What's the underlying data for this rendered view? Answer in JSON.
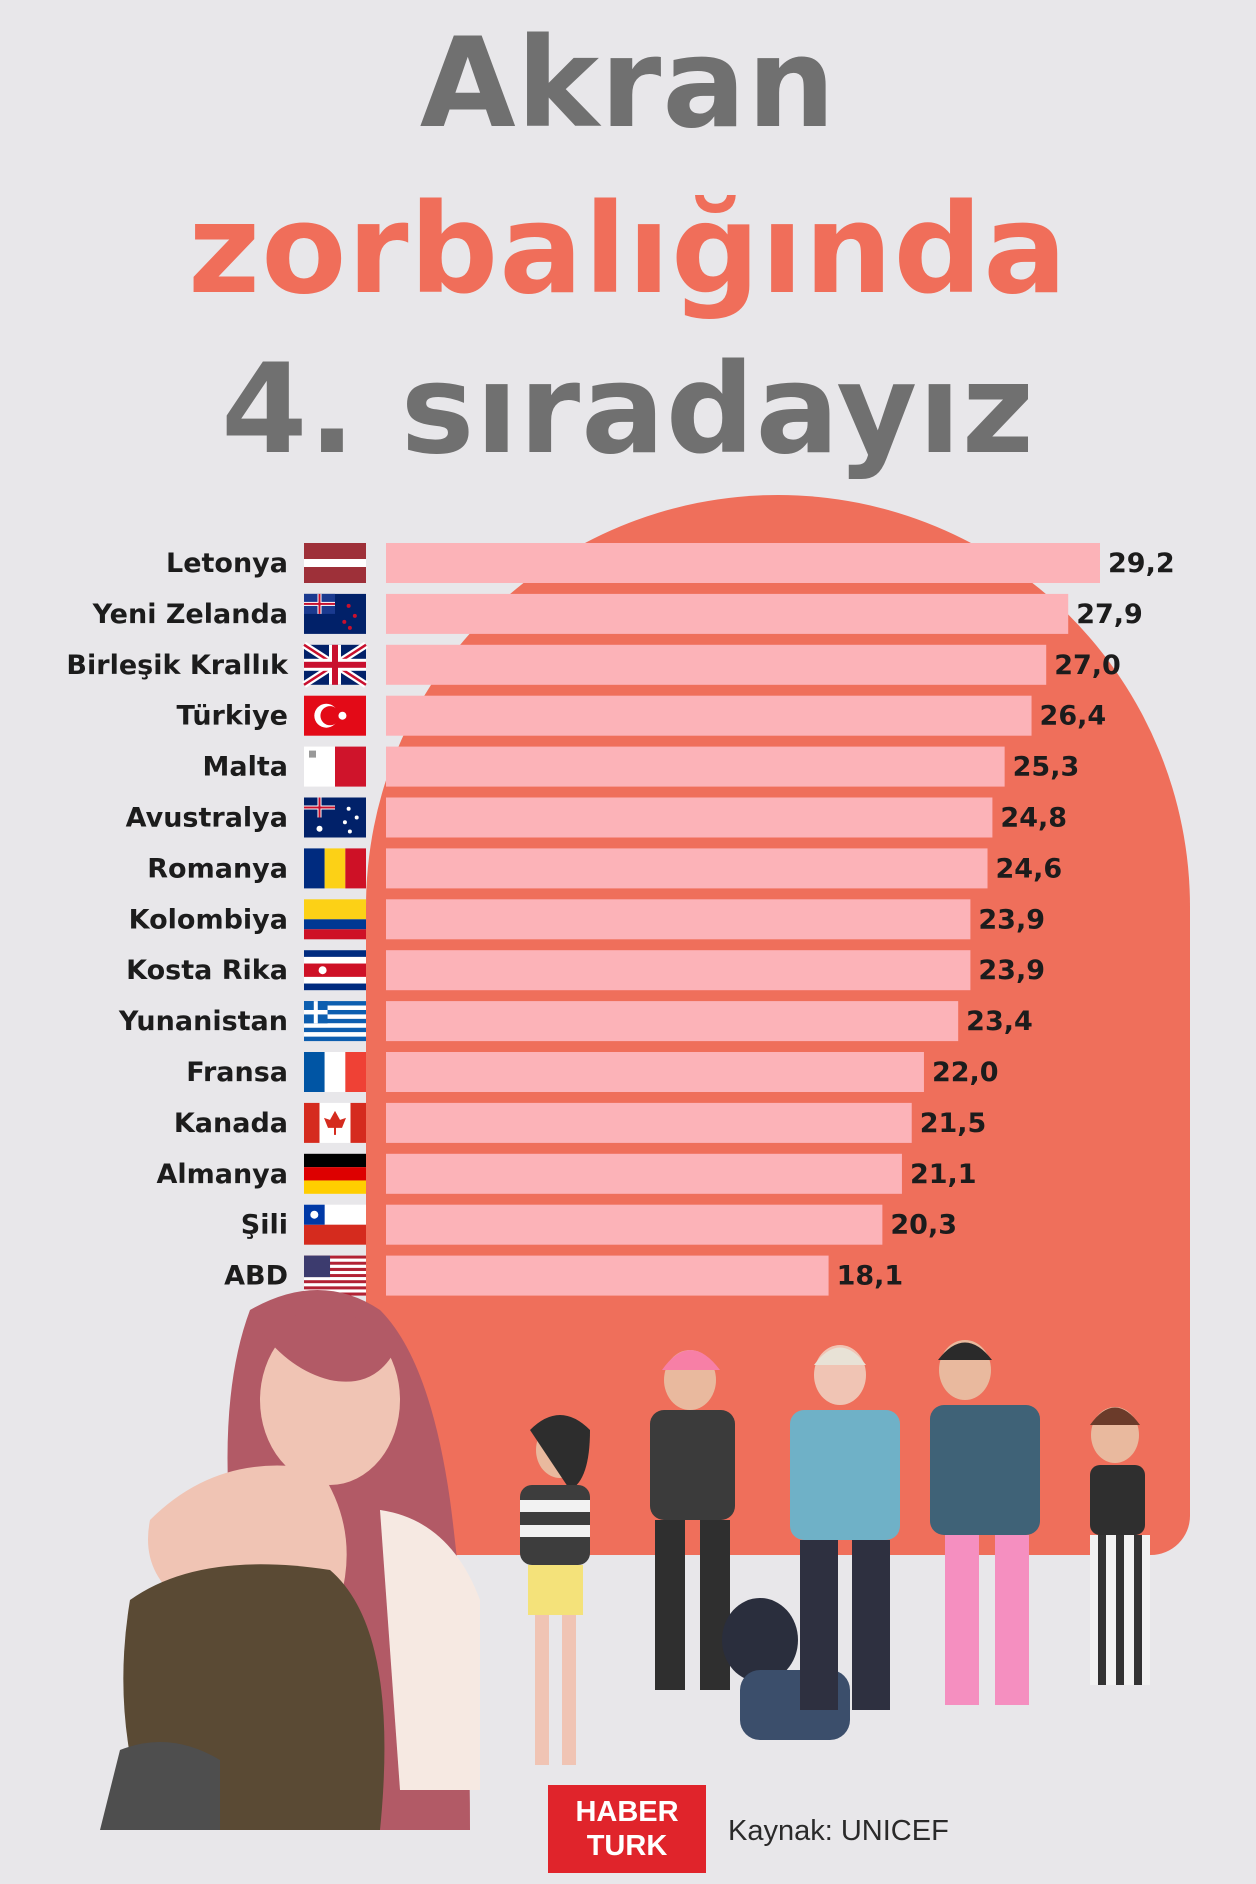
{
  "title": {
    "line1": "Akran",
    "line2": "zorbalığında",
    "line3": "4. sıradayız"
  },
  "colors": {
    "title_gray": "#707070",
    "title_accent": "#f06e5a",
    "bar": "#fcb3b8",
    "background_shape": "#ef6f5b",
    "logo": "#e0242b"
  },
  "chart_data": {
    "type": "bar",
    "orientation": "horizontal",
    "categories": [
      "Letonya",
      "Yeni Zelanda",
      "Birleşik Krallık",
      "Türkiye",
      "Malta",
      "Avustralya",
      "Romanya",
      "Kolombiya",
      "Kosta Rika",
      "Yunanistan",
      "Fransa",
      "Kanada",
      "Almanya",
      "Şili",
      "ABD"
    ],
    "values": [
      29.2,
      27.9,
      27.0,
      26.4,
      25.3,
      24.8,
      24.6,
      23.9,
      23.9,
      23.4,
      22.0,
      21.5,
      21.1,
      20.3,
      18.1
    ],
    "value_labels": [
      "29,2",
      "27,9",
      "27,0",
      "26,4",
      "25,3",
      "24,8",
      "24,6",
      "23,9",
      "23,9",
      "23,4",
      "22,0",
      "21,5",
      "21,1",
      "20,3",
      "18,1"
    ],
    "flags": [
      "latvia-flag",
      "new-zealand-flag",
      "uk-flag",
      "turkey-flag",
      "malta-flag",
      "australia-flag",
      "romania-flag",
      "colombia-flag",
      "costa-rica-flag",
      "greece-flag",
      "france-flag",
      "canada-flag",
      "germany-flag",
      "chile-flag",
      "usa-flag"
    ],
    "xlim": [
      0,
      29.2
    ],
    "grid": false,
    "legend": "none"
  },
  "footer": {
    "logo_line1": "HABER",
    "logo_line2": "TURK",
    "source": "Kaynak: UNICEF"
  }
}
